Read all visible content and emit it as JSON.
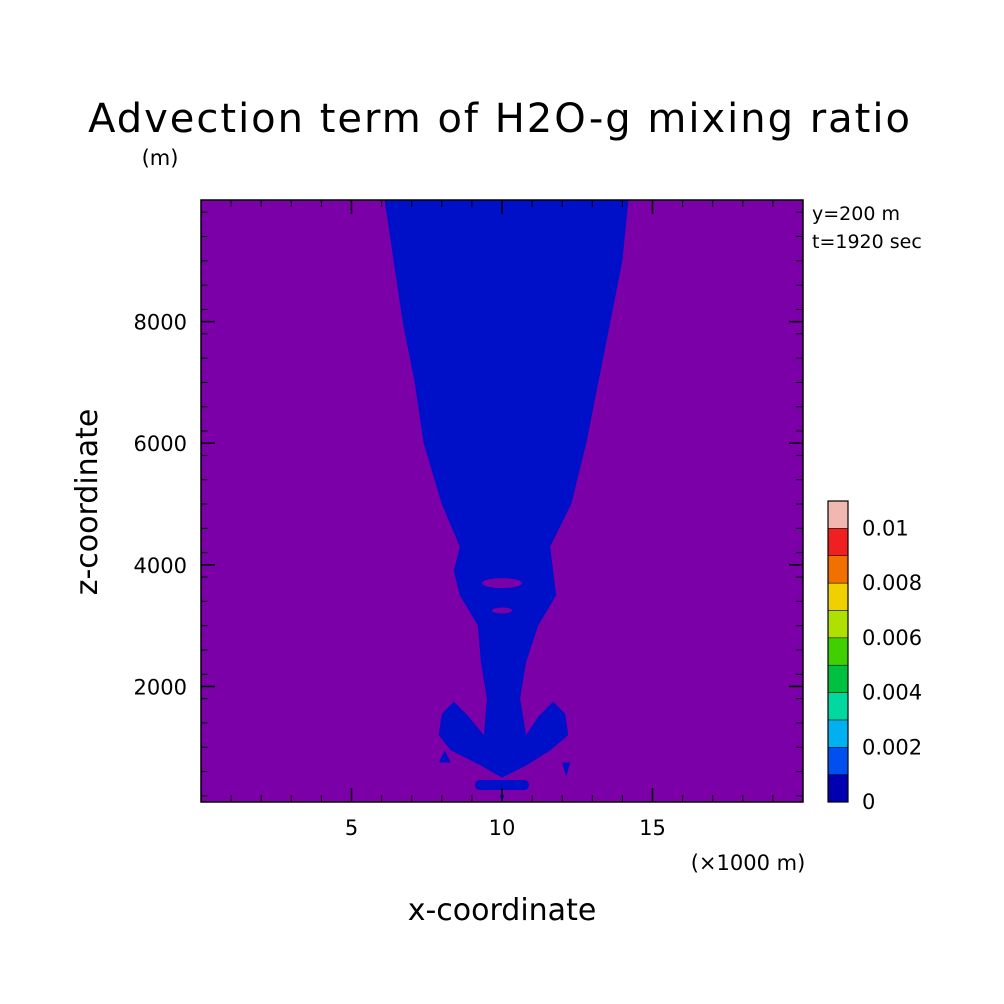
{
  "chart_data": {
    "type": "heatmap",
    "title": "Advection term of H2O-g mixing ratio",
    "z_unit": "(m)",
    "x_unit": "(×1000 m)",
    "xlabel": "x-coordinate",
    "ylabel": "z-coordinate",
    "annotations": [
      "y=200 m",
      "t=1920 sec"
    ],
    "xlim": [
      0,
      20
    ],
    "ylim": [
      100,
      10000
    ],
    "x_ticks": [
      5,
      10,
      15
    ],
    "x_tick_labels": [
      "5",
      "10",
      "15"
    ],
    "y_ticks": [
      2000,
      4000,
      6000,
      8000
    ],
    "y_tick_labels": [
      "2000",
      "4000",
      "6000",
      "8000"
    ],
    "background_color": "#7b00a8",
    "feature_color": "#0010c8",
    "colorbar": {
      "min": 0,
      "max": 0.01,
      "labels": [
        "0",
        "0.002",
        "0.004",
        "0.006",
        "0.008",
        "0.01"
      ],
      "colors": [
        "#0000b0",
        "#0050f0",
        "#00b0f0",
        "#00d8a0",
        "#00c040",
        "#40d000",
        "#b0e000",
        "#f0d000",
        "#f07000",
        "#f02020",
        "#f0b8b0"
      ]
    },
    "plume_half_width_km": [
      {
        "z": 10000,
        "left": 6.1,
        "right": 14.2
      },
      {
        "z": 9000,
        "left": 6.4,
        "right": 14.0
      },
      {
        "z": 8000,
        "left": 6.7,
        "right": 13.6
      },
      {
        "z": 7000,
        "left": 7.1,
        "right": 13.2
      },
      {
        "z": 6000,
        "left": 7.4,
        "right": 12.8
      },
      {
        "z": 5000,
        "left": 8.0,
        "right": 12.3
      },
      {
        "z": 4300,
        "left": 8.6,
        "right": 11.6
      }
    ]
  }
}
